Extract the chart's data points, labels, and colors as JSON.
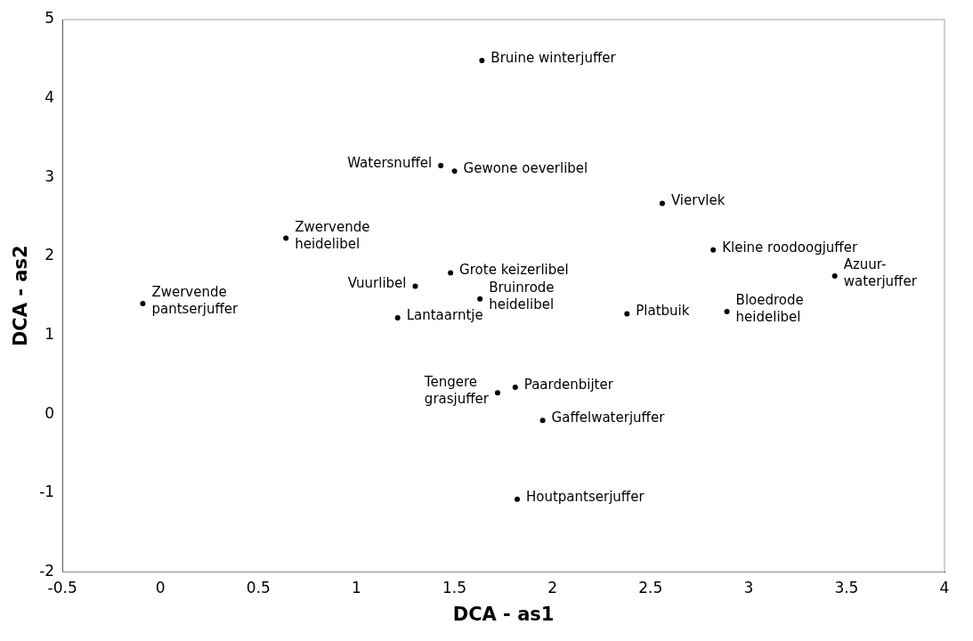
{
  "chart_data": {
    "type": "scatter",
    "xlabel": "DCA - as1",
    "ylabel": "DCA - as2",
    "x": [
      1.64,
      1.43,
      1.5,
      2.56,
      0.64,
      2.82,
      1.48,
      3.44,
      1.3,
      1.63,
      -0.09,
      2.38,
      2.89,
      1.21,
      1.81,
      1.72,
      1.95,
      1.82
    ],
    "series": [
      {
        "color": "#000000",
        "values": [
          4.48,
          3.15,
          3.08,
          2.67,
          2.23,
          2.08,
          1.79,
          1.75,
          1.62,
          1.46,
          1.4,
          1.27,
          1.3,
          1.22,
          0.34,
          0.27,
          -0.08,
          -1.08
        ]
      }
    ],
    "annotations": [
      {
        "text": "Bruine winterjuffer",
        "x": 1.64,
        "y": 4.48
      },
      {
        "text": "Watersnuffel",
        "x": 1.43,
        "y": 3.15
      },
      {
        "text": "Gewone oeverlibel",
        "x": 1.5,
        "y": 3.08
      },
      {
        "text": "Viervlek",
        "x": 2.56,
        "y": 2.67
      },
      {
        "text": "Zwervende\nheidelibel",
        "x": 0.64,
        "y": 2.23
      },
      {
        "text": "Kleine roodoogjuffer",
        "x": 2.82,
        "y": 2.08
      },
      {
        "text": "Grote keizerlibel",
        "x": 1.48,
        "y": 1.79
      },
      {
        "text": "Azuur-\nwaterjuffer",
        "x": 3.44,
        "y": 1.75
      },
      {
        "text": "Vuurlibel",
        "x": 1.3,
        "y": 1.62
      },
      {
        "text": "Bruinrode\nheidelibel",
        "x": 1.63,
        "y": 1.46
      },
      {
        "text": "Zwervende\npantserjuffer",
        "x": -0.09,
        "y": 1.4
      },
      {
        "text": "Platbuik",
        "x": 2.38,
        "y": 1.27
      },
      {
        "text": "Bloedrode\nheidelibel",
        "x": 2.89,
        "y": 1.3
      },
      {
        "text": "Lantaarntje",
        "x": 1.21,
        "y": 1.22
      },
      {
        "text": "Paardenbijter",
        "x": 1.81,
        "y": 0.34
      },
      {
        "text": "Tengere\ngrasjuffer",
        "x": 1.72,
        "y": 0.27
      },
      {
        "text": "Gaffelwaterjuffer",
        "x": 1.95,
        "y": -0.08
      },
      {
        "text": "Houtpantserjuffer",
        "x": 1.82,
        "y": -1.08
      }
    ],
    "xlim": [
      -0.5,
      4
    ],
    "xticks": [
      -0.5,
      0,
      0.5,
      1,
      1.5,
      2,
      2.5,
      3,
      3.5,
      4
    ],
    "ylim": [
      -2,
      5
    ],
    "yticks": [
      -2,
      -1,
      0,
      1,
      2,
      3,
      4,
      5
    ],
    "grid": false,
    "legend": false,
    "marker": "circle"
  }
}
